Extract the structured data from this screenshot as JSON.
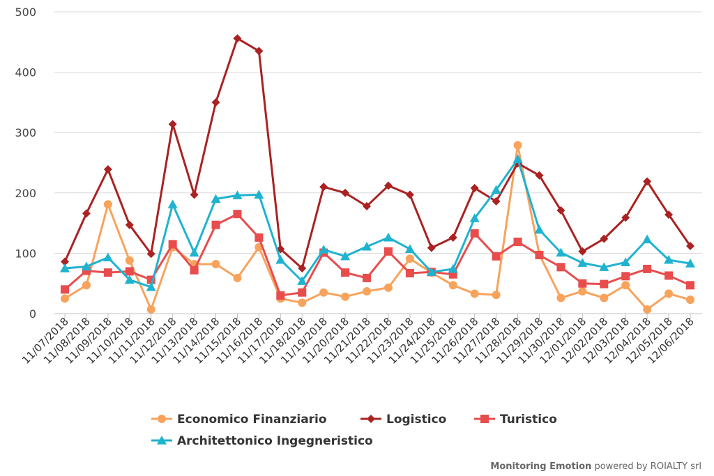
{
  "chart_data": {
    "type": "line",
    "ylim": [
      0,
      500
    ],
    "yticks": [
      "0",
      "100",
      "200",
      "300",
      "400",
      "500"
    ],
    "grid": true,
    "legend_position": "bottom-center",
    "categories": [
      "11/07/2018",
      "11/08/2018",
      "11/09/2018",
      "11/10/2018",
      "11/11/2018",
      "11/12/2018",
      "11/13/2018",
      "11/14/2018",
      "11/15/2018",
      "11/16/2018",
      "11/17/2018",
      "11/18/2018",
      "11/19/2018",
      "11/20/2018",
      "11/21/2018",
      "11/22/2018",
      "11/23/2018",
      "11/24/2018",
      "11/25/2018",
      "11/26/2018",
      "11/27/2018",
      "11/28/2018",
      "11/29/2018",
      "11/30/2018",
      "12/01/2018",
      "12/02/2018",
      "12/03/2018",
      "12/04/2018",
      "12/05/2018",
      "12/06/2018"
    ],
    "series": [
      {
        "name": "Economico Finanziario",
        "color": "#f7a35c",
        "marker": "circle",
        "values": [
          25,
          47,
          181,
          88,
          7,
          110,
          82,
          82,
          59,
          110,
          25,
          18,
          35,
          28,
          37,
          43,
          91,
          68,
          47,
          33,
          31,
          279,
          98,
          26,
          37,
          26,
          47,
          7,
          33,
          23
        ]
      },
      {
        "name": "Logistico",
        "color": "#aa2222",
        "marker": "diamond",
        "values": [
          86,
          166,
          239,
          147,
          99,
          314,
          197,
          350,
          456,
          435,
          107,
          75,
          210,
          200,
          178,
          212,
          197,
          109,
          126,
          208,
          186,
          249,
          229,
          171,
          103,
          124,
          159,
          219,
          164,
          112
        ]
      },
      {
        "name": "Turistico",
        "color": "#e84c4c",
        "marker": "square",
        "values": [
          40,
          71,
          68,
          70,
          56,
          115,
          72,
          147,
          165,
          126,
          30,
          35,
          101,
          68,
          59,
          103,
          67,
          69,
          65,
          133,
          95,
          119,
          97,
          77,
          50,
          49,
          62,
          74,
          63,
          47
        ]
      },
      {
        "name": "Architettonico Ingegneristico",
        "color": "#1fb3cf",
        "marker": "triangle",
        "values": [
          75,
          78,
          93,
          56,
          44,
          181,
          101,
          190,
          196,
          197,
          89,
          54,
          106,
          95,
          111,
          126,
          107,
          69,
          74,
          158,
          205,
          256,
          139,
          101,
          84,
          77,
          85,
          123,
          89,
          83
        ]
      }
    ]
  },
  "credit": {
    "brand": "Monitoring Emotion",
    "suffix": " powered by ROIALTY srl"
  }
}
